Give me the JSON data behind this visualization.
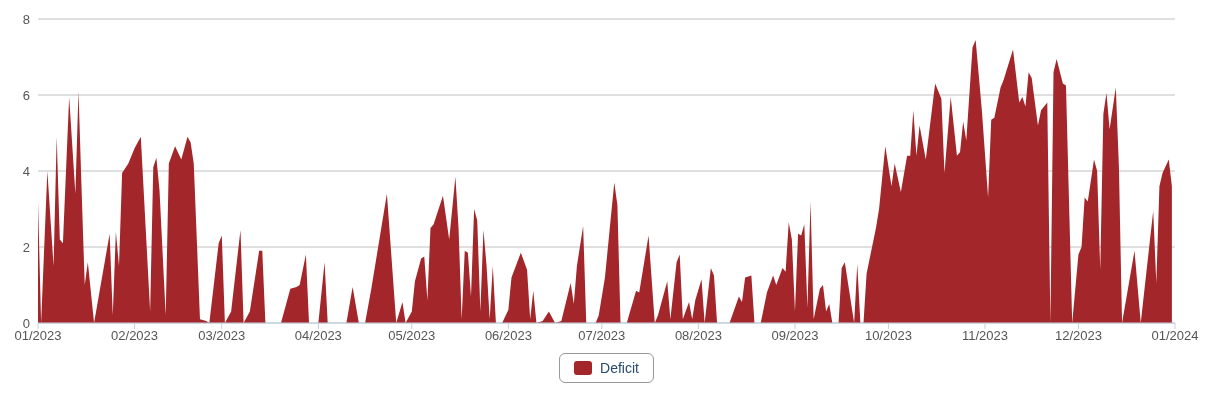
{
  "chart_data": {
    "type": "area",
    "x": [
      "2023-01-01",
      "2023-01-02",
      "2023-01-04",
      "2023-01-06",
      "2023-01-07",
      "2023-01-08",
      "2023-01-09",
      "2023-01-11",
      "2023-01-13",
      "2023-01-14",
      "2023-01-15",
      "2023-01-16",
      "2023-01-17",
      "2023-01-19",
      "2023-01-24",
      "2023-01-25",
      "2023-01-26",
      "2023-01-27",
      "2023-01-28",
      "2023-01-30",
      "2023-02-01",
      "2023-02-03",
      "2023-02-06",
      "2023-02-07",
      "2023-02-08",
      "2023-02-09",
      "2023-02-11",
      "2023-02-12",
      "2023-02-14",
      "2023-02-16",
      "2023-02-18",
      "2023-02-19",
      "2023-02-20",
      "2023-02-22",
      "2023-02-24",
      "2023-02-25",
      "2023-02-28",
      "2023-03-01",
      "2023-03-02",
      "2023-03-04",
      "2023-03-07",
      "2023-03-08",
      "2023-03-10",
      "2023-03-13",
      "2023-03-14",
      "2023-03-15",
      "2023-03-20",
      "2023-03-23",
      "2023-03-25",
      "2023-03-26",
      "2023-03-28",
      "2023-03-29",
      "2023-04-01",
      "2023-04-03",
      "2023-04-04",
      "2023-04-10",
      "2023-04-12",
      "2023-04-14",
      "2023-04-16",
      "2023-04-18",
      "2023-04-23",
      "2023-04-26",
      "2023-04-28",
      "2023-04-29",
      "2023-05-01",
      "2023-05-02",
      "2023-05-04",
      "2023-05-05",
      "2023-05-06",
      "2023-05-07",
      "2023-05-08",
      "2023-05-11",
      "2023-05-13",
      "2023-05-15",
      "2023-05-16",
      "2023-05-17",
      "2023-05-18",
      "2023-05-19",
      "2023-05-20",
      "2023-05-21",
      "2023-05-22",
      "2023-05-23",
      "2023-05-24",
      "2023-05-25",
      "2023-05-26",
      "2023-05-27",
      "2023-05-28",
      "2023-05-30",
      "2023-06-01",
      "2023-06-02",
      "2023-06-05",
      "2023-06-07",
      "2023-06-08",
      "2023-06-09",
      "2023-06-10",
      "2023-06-12",
      "2023-06-14",
      "2023-06-16",
      "2023-06-18",
      "2023-06-21",
      "2023-06-22",
      "2023-06-23",
      "2023-06-25",
      "2023-06-26",
      "2023-06-29",
      "2023-06-30",
      "2023-07-02",
      "2023-07-05",
      "2023-07-06",
      "2023-07-07",
      "2023-07-09",
      "2023-07-12",
      "2023-07-13",
      "2023-07-16",
      "2023-07-18",
      "2023-07-19",
      "2023-07-22",
      "2023-07-23",
      "2023-07-25",
      "2023-07-26",
      "2023-07-27",
      "2023-07-29",
      "2023-07-30",
      "2023-07-31",
      "2023-08-02",
      "2023-08-03",
      "2023-08-05",
      "2023-08-06",
      "2023-08-07",
      "2023-08-11",
      "2023-08-14",
      "2023-08-15",
      "2023-08-16",
      "2023-08-18",
      "2023-08-19",
      "2023-08-21",
      "2023-08-23",
      "2023-08-25",
      "2023-08-26",
      "2023-08-28",
      "2023-08-29",
      "2023-08-30",
      "2023-08-31",
      "2023-09-01",
      "2023-09-02",
      "2023-09-03",
      "2023-09-04",
      "2023-09-05",
      "2023-09-06",
      "2023-09-07",
      "2023-09-09",
      "2023-09-10",
      "2023-09-11",
      "2023-09-12",
      "2023-09-13",
      "2023-09-15",
      "2023-09-16",
      "2023-09-17",
      "2023-09-20",
      "2023-09-21",
      "2023-09-22",
      "2023-09-23",
      "2023-09-24",
      "2023-09-27",
      "2023-09-28",
      "2023-09-30",
      "2023-10-02",
      "2023-10-03",
      "2023-10-05",
      "2023-10-07",
      "2023-10-08",
      "2023-10-09",
      "2023-10-10",
      "2023-10-11",
      "2023-10-13",
      "2023-10-16",
      "2023-10-18",
      "2023-10-19",
      "2023-10-21",
      "2023-10-23",
      "2023-10-24",
      "2023-10-25",
      "2023-10-26",
      "2023-10-28",
      "2023-10-29",
      "2023-10-31",
      "2023-11-02",
      "2023-11-03",
      "2023-11-04",
      "2023-11-06",
      "2023-11-07",
      "2023-11-10",
      "2023-11-12",
      "2023-11-13",
      "2023-11-14",
      "2023-11-15",
      "2023-11-16",
      "2023-11-18",
      "2023-11-19",
      "2023-11-21",
      "2023-11-22",
      "2023-11-23",
      "2023-11-24",
      "2023-11-26",
      "2023-11-27",
      "2023-11-29",
      "2023-12-01",
      "2023-12-02",
      "2023-12-03",
      "2023-12-04",
      "2023-12-06",
      "2023-12-07",
      "2023-12-08",
      "2023-12-09",
      "2023-12-10",
      "2023-12-11",
      "2023-12-13",
      "2023-12-14",
      "2023-12-15",
      "2023-12-19",
      "2023-12-21",
      "2023-12-25",
      "2023-12-26",
      "2023-12-27",
      "2023-12-28",
      "2023-12-30",
      "2023-12-31"
    ],
    "series": [
      {
        "name": "Deficit",
        "color": "#a3262a",
        "values": [
          3.2,
          0,
          4.0,
          1.5,
          4.9,
          2.2,
          2.1,
          5.95,
          3.4,
          6.1,
          3.5,
          1.0,
          1.6,
          0,
          2.35,
          0.2,
          2.4,
          1.5,
          3.95,
          4.2,
          4.6,
          4.9,
          0.3,
          4.1,
          4.35,
          3.5,
          0.2,
          4.2,
          4.65,
          4.3,
          4.9,
          4.75,
          4.2,
          0.1,
          0.05,
          0,
          2.1,
          2.3,
          0,
          0.3,
          2.45,
          0,
          0.3,
          1.9,
          1.9,
          0,
          0,
          0.9,
          0.95,
          1.0,
          1.8,
          0,
          0,
          1.6,
          0,
          0,
          0.95,
          0,
          0,
          0.9,
          3.4,
          0,
          0.55,
          0,
          0.3,
          1.1,
          1.7,
          1.75,
          0.6,
          2.5,
          2.6,
          3.35,
          2.2,
          3.85,
          2.5,
          0.1,
          1.9,
          1.85,
          0.7,
          3.0,
          2.7,
          0.3,
          2.45,
          1.5,
          0.1,
          1.5,
          0,
          0,
          0.35,
          1.2,
          1.85,
          1.4,
          0.1,
          0.85,
          0,
          0.05,
          0.3,
          0,
          0.05,
          1.05,
          0.5,
          1.5,
          2.55,
          0,
          0,
          0.2,
          1.2,
          3.7,
          3.1,
          0,
          0,
          0.85,
          0.8,
          2.3,
          0,
          0.2,
          1.1,
          0.1,
          1.6,
          1.8,
          0.1,
          0.55,
          0.1,
          0.6,
          1.15,
          0,
          1.45,
          1.25,
          0,
          0,
          0.7,
          0.55,
          1.2,
          1.25,
          0,
          0,
          0.8,
          1.25,
          1.0,
          1.45,
          1.35,
          2.65,
          2.2,
          0.3,
          2.35,
          2.3,
          2.6,
          0.4,
          3.2,
          0.1,
          0.9,
          1.0,
          0.3,
          0.5,
          0,
          0,
          1.45,
          1.6,
          0,
          1.55,
          0,
          0,
          1.3,
          2.5,
          3.0,
          4.65,
          3.6,
          4.2,
          3.45,
          4.4,
          4.4,
          5.6,
          4.4,
          5.2,
          4.3,
          6.3,
          5.9,
          3.95,
          5.95,
          4.4,
          4.5,
          5.3,
          4.8,
          7.25,
          7.45,
          5.6,
          3.3,
          5.35,
          5.4,
          6.2,
          6.4,
          7.2,
          5.8,
          5.95,
          5.7,
          6.6,
          6.45,
          5.2,
          5.6,
          5.8,
          0,
          6.6,
          6.95,
          6.3,
          6.25,
          0,
          1.8,
          2.0,
          3.3,
          3.2,
          4.3,
          4.0,
          1.4,
          5.5,
          6.05,
          5.1,
          6.2,
          4.1,
          0,
          1.9,
          0,
          2.95,
          1.05,
          3.6,
          3.95,
          4.3,
          3.6
        ]
      }
    ],
    "xlim": [
      "2023-01-01",
      "2024-01-01"
    ],
    "xticks": [
      {
        "value": "2023-01-01",
        "label": "01/2023"
      },
      {
        "value": "2023-02-01",
        "label": "02/2023"
      },
      {
        "value": "2023-03-01",
        "label": "03/2023"
      },
      {
        "value": "2023-04-01",
        "label": "04/2023"
      },
      {
        "value": "2023-05-01",
        "label": "05/2023"
      },
      {
        "value": "2023-06-01",
        "label": "06/2023"
      },
      {
        "value": "2023-07-01",
        "label": "07/2023"
      },
      {
        "value": "2023-08-01",
        "label": "08/2023"
      },
      {
        "value": "2023-09-01",
        "label": "09/2023"
      },
      {
        "value": "2023-10-01",
        "label": "10/2023"
      },
      {
        "value": "2023-11-01",
        "label": "11/2023"
      },
      {
        "value": "2023-12-01",
        "label": "12/2023"
      },
      {
        "value": "2024-01-01",
        "label": "01/2024"
      }
    ],
    "ylim": [
      0,
      8
    ],
    "yticks": [
      0,
      2,
      4,
      6,
      8
    ],
    "grid": "y",
    "legend": "bottom"
  }
}
